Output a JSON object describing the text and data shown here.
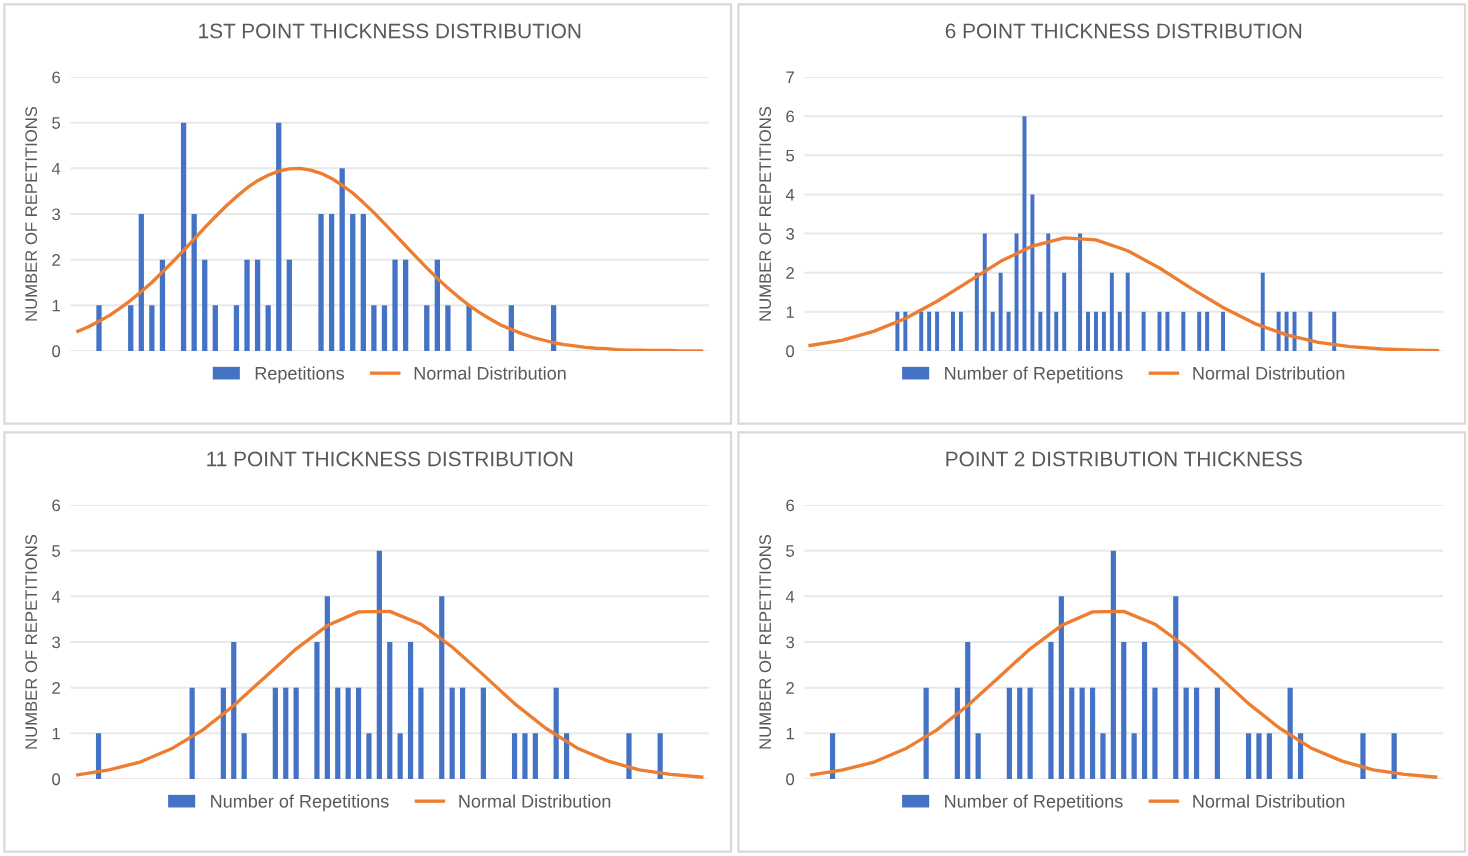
{
  "chart_data": [
    {
      "type": "bar",
      "title": "1ST POINT THICKNESS DISTRIBUTION",
      "ylabel": "NUMBER OF REPETITIONS",
      "categories": [
        null,
        null,
        null,
        null,
        null,
        null,
        null,
        null,
        null,
        null,
        null,
        null,
        null,
        null,
        null,
        null,
        null,
        null,
        null,
        null,
        null,
        null,
        null,
        null,
        null,
        null,
        null,
        null,
        null,
        null,
        null,
        null,
        null,
        null,
        null,
        null,
        null,
        null,
        null,
        null,
        null,
        null,
        null,
        null,
        null,
        null,
        null,
        null,
        null,
        null,
        null,
        null,
        null,
        null,
        null,
        null,
        null,
        null,
        null,
        null
      ],
      "series": [
        {
          "name": "Repetitions",
          "color": "#4472c4",
          "values": [
            0,
            0,
            1,
            0,
            0,
            1,
            3,
            1,
            2,
            0,
            5,
            3,
            2,
            1,
            0,
            1,
            2,
            2,
            1,
            5,
            2,
            0,
            0,
            3,
            3,
            4,
            3,
            3,
            1,
            1,
            2,
            2,
            0,
            1,
            2,
            1,
            0,
            1,
            0,
            0,
            0,
            1,
            0,
            0,
            0,
            1,
            0,
            0,
            0,
            0,
            0,
            0,
            0,
            0,
            0,
            0,
            0,
            0,
            0,
            0
          ]
        },
        {
          "name": "Normal Distribution",
          "type": "line",
          "color": "#ed7d31",
          "values": [
            0.43,
            0.53,
            0.65,
            0.78,
            0.94,
            1.11,
            1.3,
            1.5,
            1.73,
            1.96,
            2.2,
            2.45,
            2.7,
            2.94,
            3.17,
            3.38,
            3.57,
            3.73,
            3.85,
            3.94,
            3.99,
            4.0,
            3.96,
            3.89,
            3.78,
            3.63,
            3.46,
            3.25,
            3.03,
            2.79,
            2.55,
            2.3,
            2.06,
            1.82,
            1.59,
            1.38,
            1.18,
            1.0,
            0.84,
            0.7,
            0.57,
            0.47,
            0.38,
            0.3,
            0.24,
            0.18,
            0.14,
            0.11,
            0.08,
            0.06,
            0.05,
            0.03,
            0.02,
            0.02,
            0.01,
            0.01,
            0.01,
            0,
            0,
            0
          ]
        }
      ],
      "ylim": [
        0,
        6
      ],
      "yticks": [
        0,
        1,
        2,
        3,
        4,
        5,
        6
      ],
      "grid": "y",
      "legend": "bottom",
      "tick_labels": "y",
      "marker": "none"
    },
    {
      "type": "bar",
      "title": "6 POINT THICKNESS DISTRIBUTION",
      "ylabel": "NUMBER OF REPETITIONS",
      "categories": [
        null,
        null,
        null,
        null,
        null,
        null,
        null,
        null,
        null,
        null,
        null,
        null,
        null,
        null,
        null,
        null,
        null,
        null,
        null,
        null,
        null,
        null,
        null,
        null,
        null,
        null,
        null,
        null,
        null,
        null,
        null,
        null,
        null,
        null,
        null,
        null,
        null,
        null,
        null,
        null,
        null,
        null,
        null,
        null,
        null,
        null,
        null,
        null,
        null,
        null,
        null,
        null,
        null,
        null,
        null,
        null,
        null,
        null,
        null,
        null,
        null,
        null,
        null,
        null,
        null,
        null,
        null,
        null,
        null,
        null,
        null,
        null,
        null,
        null,
        null,
        null,
        null,
        null,
        null,
        null
      ],
      "series": [
        {
          "name": "Number of Repetitions",
          "color": "#4472c4",
          "values": [
            0,
            0,
            0,
            0,
            0,
            0,
            0,
            0,
            0,
            0,
            0,
            1,
            1,
            0,
            1,
            1,
            1,
            0,
            1,
            1,
            0,
            2,
            3,
            1,
            2,
            1,
            3,
            6,
            4,
            1,
            3,
            1,
            2,
            0,
            3,
            1,
            1,
            1,
            2,
            1,
            2,
            0,
            1,
            0,
            1,
            1,
            0,
            1,
            0,
            1,
            1,
            0,
            1,
            0,
            0,
            0,
            0,
            2,
            0,
            1,
            1,
            1,
            0,
            1,
            0,
            0,
            1,
            0,
            0,
            0,
            0,
            0,
            0,
            0,
            0,
            0,
            0,
            0,
            0,
            0
          ]
        },
        {
          "name": "Normal Distribution",
          "type": "line",
          "color": "#ed7d31",
          "values": [
            0.14,
            null,
            null,
            null,
            0.27,
            null,
            null,
            null,
            0.5,
            null,
            null,
            null,
            0.83,
            null,
            null,
            null,
            1.27,
            null,
            null,
            null,
            1.78,
            null,
            null,
            null,
            2.29,
            null,
            null,
            null,
            2.68,
            null,
            null,
            null,
            2.89,
            null,
            null,
            null,
            2.84,
            null,
            null,
            null,
            2.56,
            null,
            null,
            null,
            2.12,
            null,
            null,
            null,
            1.6,
            null,
            null,
            null,
            1.11,
            null,
            null,
            null,
            0.7,
            null,
            null,
            null,
            0.41,
            null,
            null,
            null,
            0.22,
            null,
            null,
            null,
            0.11,
            null,
            null,
            null,
            0.05,
            null,
            null,
            null,
            0.02,
            null,
            null,
            0.01
          ]
        }
      ],
      "ylim": [
        0,
        7
      ],
      "yticks": [
        0,
        1,
        2,
        3,
        4,
        5,
        6,
        7
      ],
      "grid": "y",
      "legend": "bottom",
      "tick_labels": "y",
      "marker": "none"
    },
    {
      "type": "bar",
      "title": "11 POINT THICKNESS DISTRIBUTION",
      "ylabel": "NUMBER OF REPETITIONS",
      "categories": [
        null,
        null,
        null,
        null,
        null,
        null,
        null,
        null,
        null,
        null,
        null,
        null,
        null,
        null,
        null,
        null,
        null,
        null,
        null,
        null,
        null,
        null,
        null,
        null,
        null,
        null,
        null,
        null,
        null,
        null,
        null,
        null,
        null,
        null,
        null,
        null,
        null,
        null,
        null,
        null,
        null,
        null,
        null,
        null,
        null,
        null,
        null,
        null,
        null,
        null,
        null,
        null,
        null,
        null,
        null,
        null,
        null,
        null,
        null,
        null,
        null
      ],
      "series": [
        {
          "name": "Number of Repetitions",
          "color": "#4472c4",
          "values": [
            0,
            0,
            1,
            0,
            0,
            0,
            0,
            0,
            0,
            0,
            0,
            2,
            0,
            0,
            2,
            3,
            1,
            0,
            0,
            2,
            2,
            2,
            0,
            3,
            4,
            2,
            2,
            2,
            1,
            5,
            3,
            1,
            3,
            2,
            0,
            4,
            2,
            2,
            0,
            2,
            0,
            0,
            1,
            1,
            1,
            0,
            2,
            1,
            0,
            0,
            0,
            0,
            0,
            1,
            0,
            0,
            1,
            0,
            0,
            0,
            0
          ]
        },
        {
          "name": "Normal Distribution",
          "type": "line",
          "color": "#ed7d31",
          "values": [
            0.09,
            null,
            null,
            0.2,
            null,
            null,
            0.37,
            null,
            null,
            0.66,
            null,
            null,
            1.07,
            null,
            null,
            1.61,
            null,
            null,
            2.23,
            null,
            null,
            2.85,
            null,
            null,
            3.36,
            null,
            null,
            3.66,
            null,
            null,
            3.67,
            null,
            null,
            3.39,
            null,
            null,
            2.89,
            null,
            null,
            2.28,
            null,
            null,
            1.65,
            null,
            null,
            1.11,
            null,
            null,
            0.68,
            null,
            null,
            0.39,
            null,
            null,
            0.2,
            null,
            null,
            0.1,
            null,
            null,
            0.04
          ]
        }
      ],
      "ylim": [
        0,
        6
      ],
      "yticks": [
        0,
        1,
        2,
        3,
        4,
        5,
        6
      ],
      "grid": "y",
      "legend": "bottom",
      "tick_labels": "y",
      "marker": "none"
    },
    {
      "type": "bar",
      "title": "POINT 2 DISTRIBUTION THICKNESS",
      "ylabel": "NUMBER OF REPETITIONS",
      "categories": [
        null,
        null,
        null,
        null,
        null,
        null,
        null,
        null,
        null,
        null,
        null,
        null,
        null,
        null,
        null,
        null,
        null,
        null,
        null,
        null,
        null,
        null,
        null,
        null,
        null,
        null,
        null,
        null,
        null,
        null,
        null,
        null,
        null,
        null,
        null,
        null,
        null,
        null,
        null,
        null,
        null,
        null,
        null,
        null,
        null,
        null,
        null,
        null,
        null,
        null,
        null,
        null,
        null,
        null,
        null,
        null,
        null,
        null,
        null,
        null,
        null
      ],
      "series": [
        {
          "name": "Number of Repetitions",
          "color": "#4472c4",
          "values": [
            0,
            0,
            1,
            0,
            0,
            0,
            0,
            0,
            0,
            0,
            0,
            2,
            0,
            0,
            2,
            3,
            1,
            0,
            0,
            2,
            2,
            2,
            0,
            3,
            4,
            2,
            2,
            2,
            1,
            5,
            3,
            1,
            3,
            2,
            0,
            4,
            2,
            2,
            0,
            2,
            0,
            0,
            1,
            1,
            1,
            0,
            2,
            1,
            0,
            0,
            0,
            0,
            0,
            1,
            0,
            0,
            1,
            0,
            0,
            0,
            0
          ]
        },
        {
          "name": "Normal Distribution",
          "type": "line",
          "color": "#ed7d31",
          "values": [
            0.09,
            null,
            null,
            0.2,
            null,
            null,
            0.37,
            null,
            null,
            0.66,
            null,
            null,
            1.07,
            null,
            null,
            1.61,
            null,
            null,
            2.23,
            null,
            null,
            2.85,
            null,
            null,
            3.36,
            null,
            null,
            3.66,
            null,
            null,
            3.67,
            null,
            null,
            3.39,
            null,
            null,
            2.89,
            null,
            null,
            2.28,
            null,
            null,
            1.65,
            null,
            null,
            1.11,
            null,
            null,
            0.68,
            null,
            null,
            0.39,
            null,
            null,
            0.2,
            null,
            null,
            0.1,
            null,
            null,
            0.04
          ]
        }
      ],
      "ylim": [
        0,
        6
      ],
      "yticks": [
        0,
        1,
        2,
        3,
        4,
        5,
        6
      ],
      "grid": "y",
      "legend": "bottom",
      "tick_labels": "y",
      "marker": "none"
    }
  ]
}
